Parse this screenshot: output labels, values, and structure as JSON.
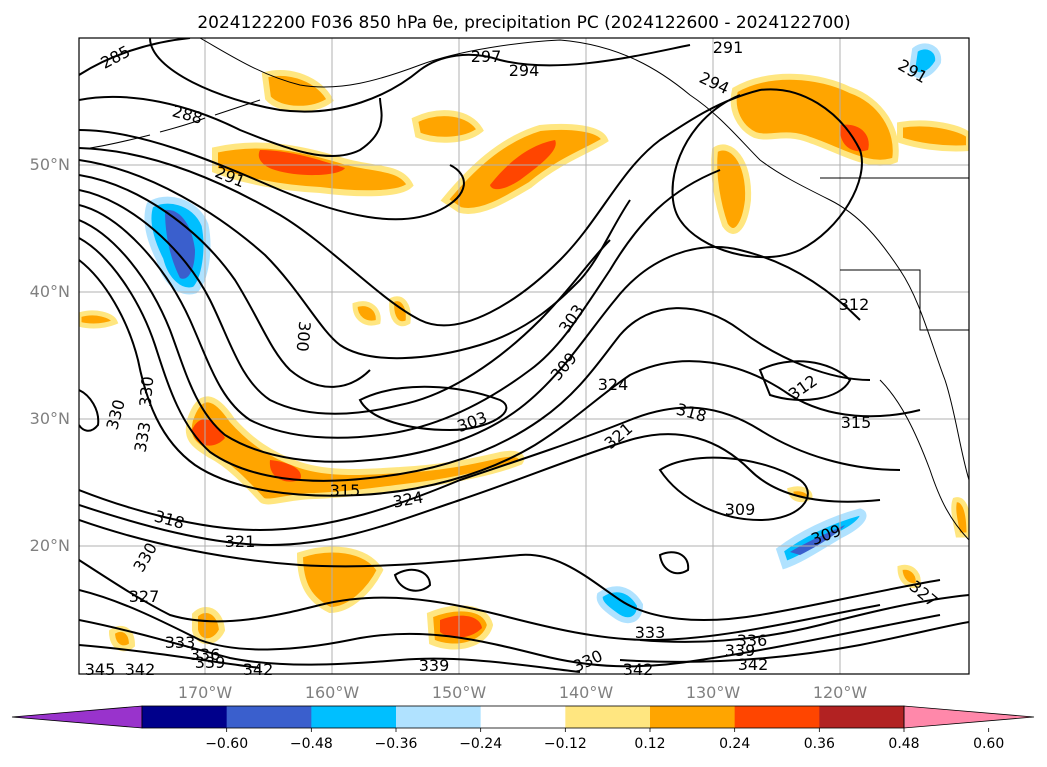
{
  "title": "2024122200 F036 850 hPa θe, precipitation PC (2024122600 - 2024122700)",
  "map": {
    "lat_labels": [
      "50°N",
      "40°N",
      "30°N",
      "20°N"
    ],
    "lon_labels": [
      "170°W",
      "160°W",
      "150°W",
      "140°W",
      "130°W",
      "120°W"
    ],
    "grid": true
  },
  "colorbar": {
    "ticks": [
      "−0.60",
      "−0.48",
      "−0.36",
      "−0.24",
      "−0.12",
      "0.12",
      "0.24",
      "0.36",
      "0.48",
      "0.60"
    ],
    "colors": [
      "#9933cc",
      "#00008b",
      "#3a5fcd",
      "#00bfff",
      "#b0e2ff",
      "#ffffff",
      "#ffe680",
      "#ffa500",
      "#ff4500",
      "#b22222",
      "#ff88aa"
    ],
    "extend": "both"
  },
  "contour_labels": [
    "285",
    "288",
    "291",
    "297",
    "294",
    "291",
    "294",
    "291",
    "300",
    "303",
    "303",
    "309",
    "312",
    "312",
    "315",
    "318",
    "321",
    "324",
    "324",
    "327",
    "330",
    "330",
    "330",
    "333",
    "333",
    "336",
    "339",
    "339",
    "342",
    "342",
    "342",
    "345",
    "315",
    "309",
    "309",
    "318",
    "321",
    "330",
    "327",
    "333",
    "336",
    "339",
    "342"
  ]
}
